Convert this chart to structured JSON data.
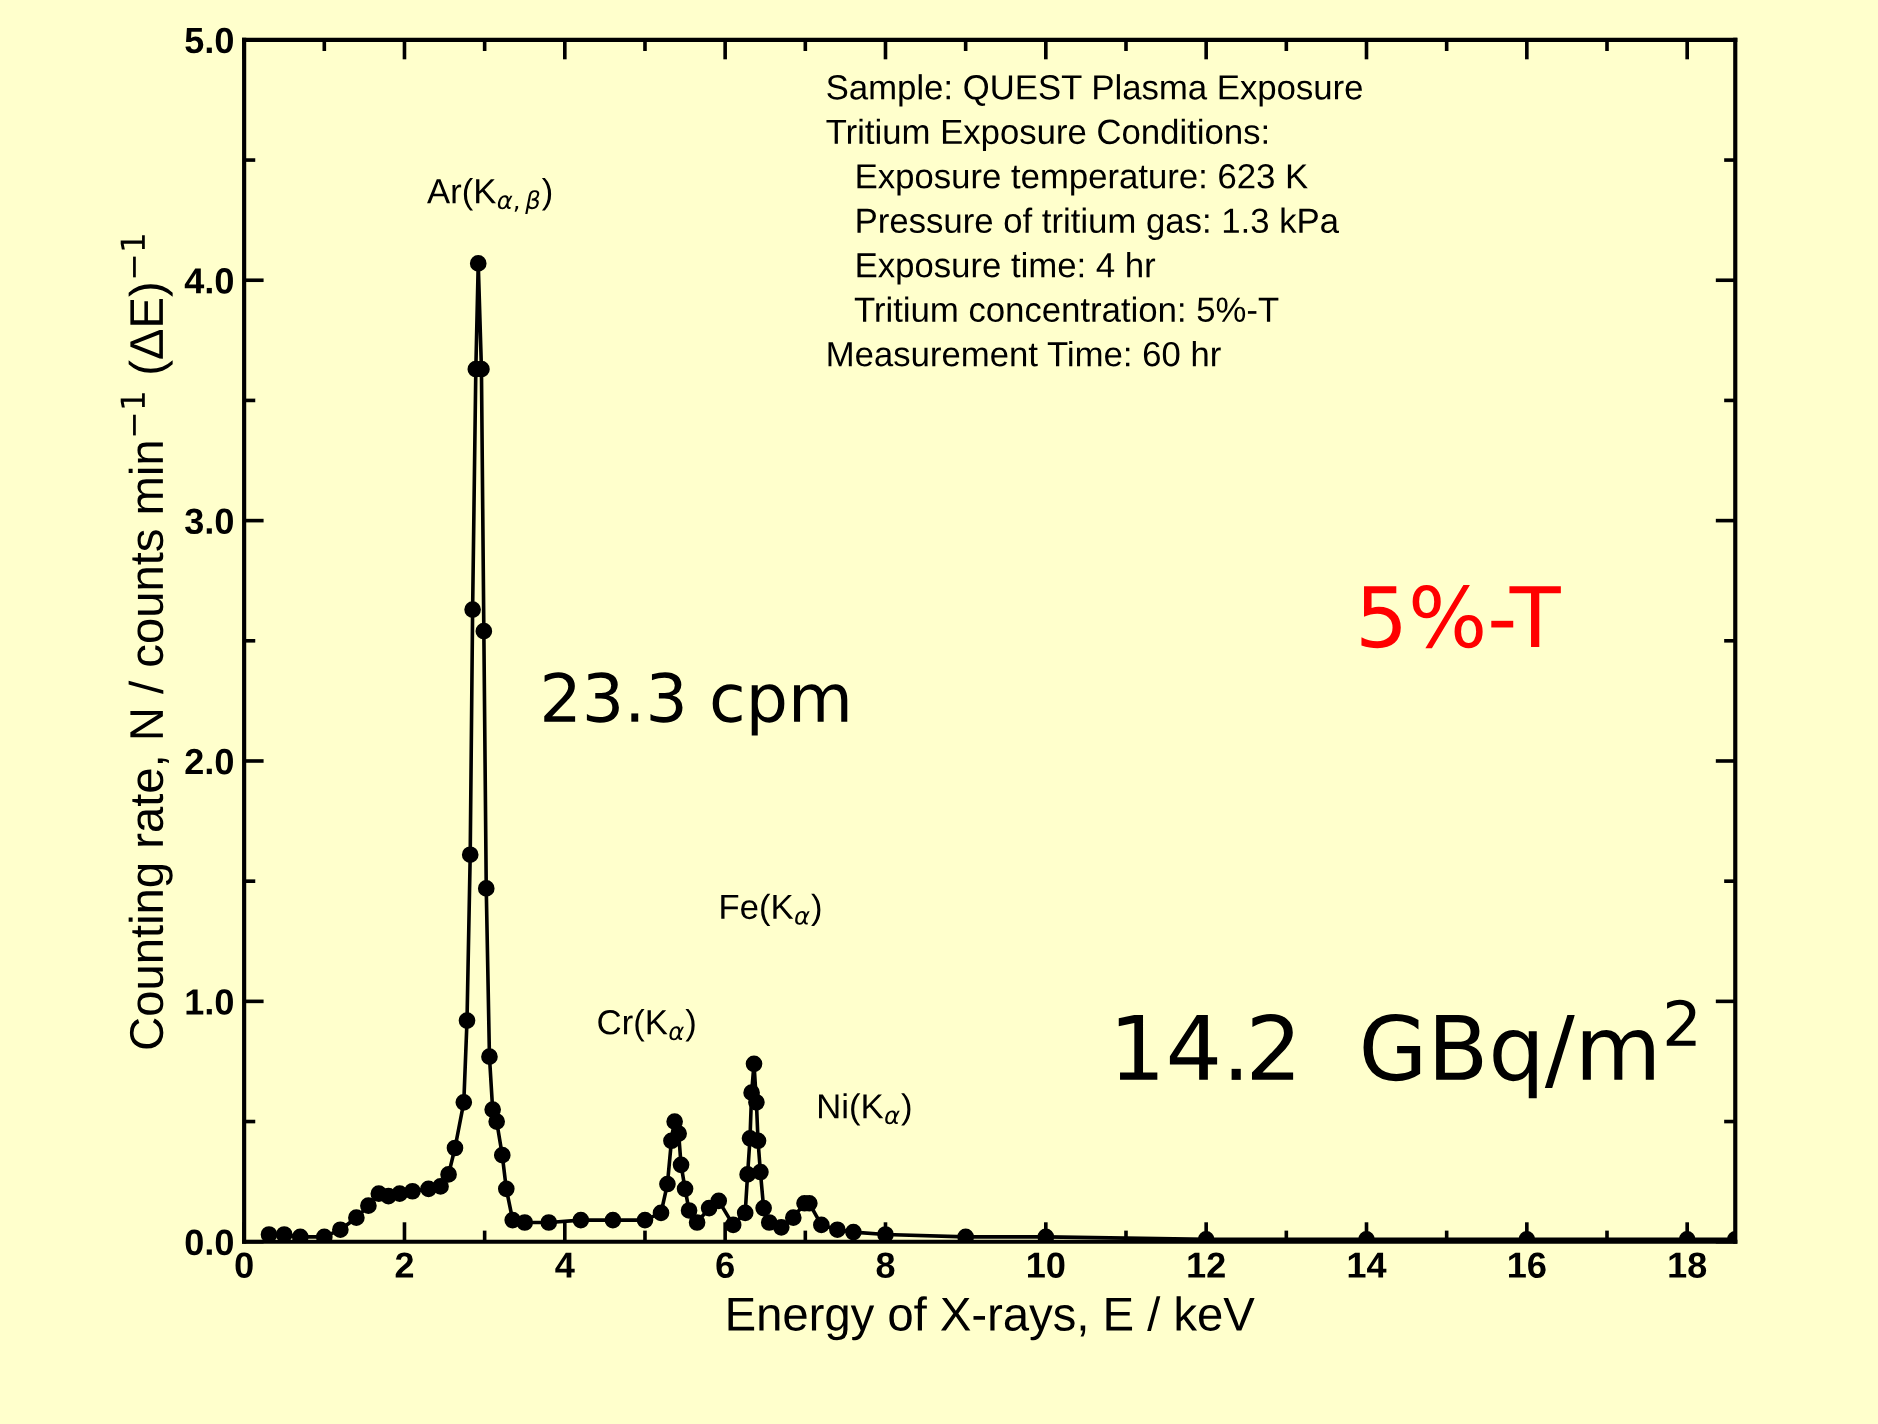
{
  "chart_data": {
    "type": "line",
    "xlabel": "Energy of X-rays, E / keV",
    "ylabel": "Counting rate, N / counts min$^{−1}$ (ΔE)$^{−1}$",
    "x": [
      0.31,
      0.5,
      0.7,
      1.0,
      1.2,
      1.4,
      1.55,
      1.68,
      1.8,
      1.94,
      2.1,
      2.3,
      2.45,
      2.55,
      2.63,
      2.74,
      2.78,
      2.82,
      2.85,
      2.89,
      2.92,
      2.96,
      2.99,
      3.02,
      3.06,
      3.1,
      3.15,
      3.22,
      3.27,
      3.35,
      3.5,
      3.8,
      4.2,
      4.6,
      5.0,
      5.2,
      5.28,
      5.33,
      5.37,
      5.42,
      5.45,
      5.5,
      5.55,
      5.65,
      5.8,
      5.92,
      6.1,
      6.25,
      6.28,
      6.31,
      6.33,
      6.36,
      6.39,
      6.41,
      6.44,
      6.48,
      6.55,
      6.7,
      6.85,
      6.99,
      7.05,
      7.2,
      7.4,
      7.6,
      8.0,
      9.0,
      10.0,
      12.0,
      14.0,
      16.0,
      18.0,
      18.6
    ],
    "series": [
      {
        "color": "#000000",
        "values": [
          0.03,
          0.03,
          0.02,
          0.02,
          0.05,
          0.1,
          0.15,
          0.2,
          0.19,
          0.2,
          0.21,
          0.22,
          0.23,
          0.28,
          0.39,
          0.58,
          0.92,
          1.61,
          2.63,
          3.63,
          4.07,
          3.63,
          2.54,
          1.47,
          0.77,
          0.55,
          0.5,
          0.36,
          0.22,
          0.09,
          0.08,
          0.08,
          0.09,
          0.09,
          0.09,
          0.12,
          0.24,
          0.42,
          0.5,
          0.45,
          0.32,
          0.22,
          0.13,
          0.08,
          0.14,
          0.17,
          0.07,
          0.12,
          0.28,
          0.43,
          0.62,
          0.74,
          0.58,
          0.42,
          0.29,
          0.14,
          0.08,
          0.06,
          0.1,
          0.16,
          0.16,
          0.07,
          0.05,
          0.04,
          0.03,
          0.02,
          0.02,
          0.01,
          0.01,
          0.01,
          0.01,
          0.01
        ]
      }
    ],
    "xlim": [
      0,
      18.6
    ],
    "xticks": [
      0,
      2,
      4,
      6,
      8,
      10,
      12,
      14,
      16,
      18
    ],
    "ylim": [
      0,
      5
    ],
    "yticks": [
      {
        "value": 0,
        "label": "0.0"
      },
      {
        "value": 1,
        "label": "1.0"
      },
      {
        "value": 2,
        "label": "2.0"
      },
      {
        "value": 3,
        "label": "3.0"
      },
      {
        "value": 4,
        "label": "4.0"
      },
      {
        "value": 5,
        "label": "5.0"
      }
    ],
    "marker": "circle",
    "line_style": "solid",
    "grid": false,
    "annotations": [
      "Ar(K$_{α,β}$)",
      "Cr(K$_{α}$)",
      "Fe(K$_{α}$)",
      "Ni(K$_{α}$)",
      "Sample: QUEST Plasma Exposure",
      "Tritium Exposure Conditions:",
      "   Exposure temperature: 623 K",
      "   Pressure of tritium gas: 1.3 kPa",
      "   Exposure time: 4 hr",
      "   Tritium concentration: 5%-T",
      "Measurement Time: 60 hr",
      "23.3 cpm",
      "5%-T",
      "14.2  GBq/m$^{2}$"
    ]
  }
}
